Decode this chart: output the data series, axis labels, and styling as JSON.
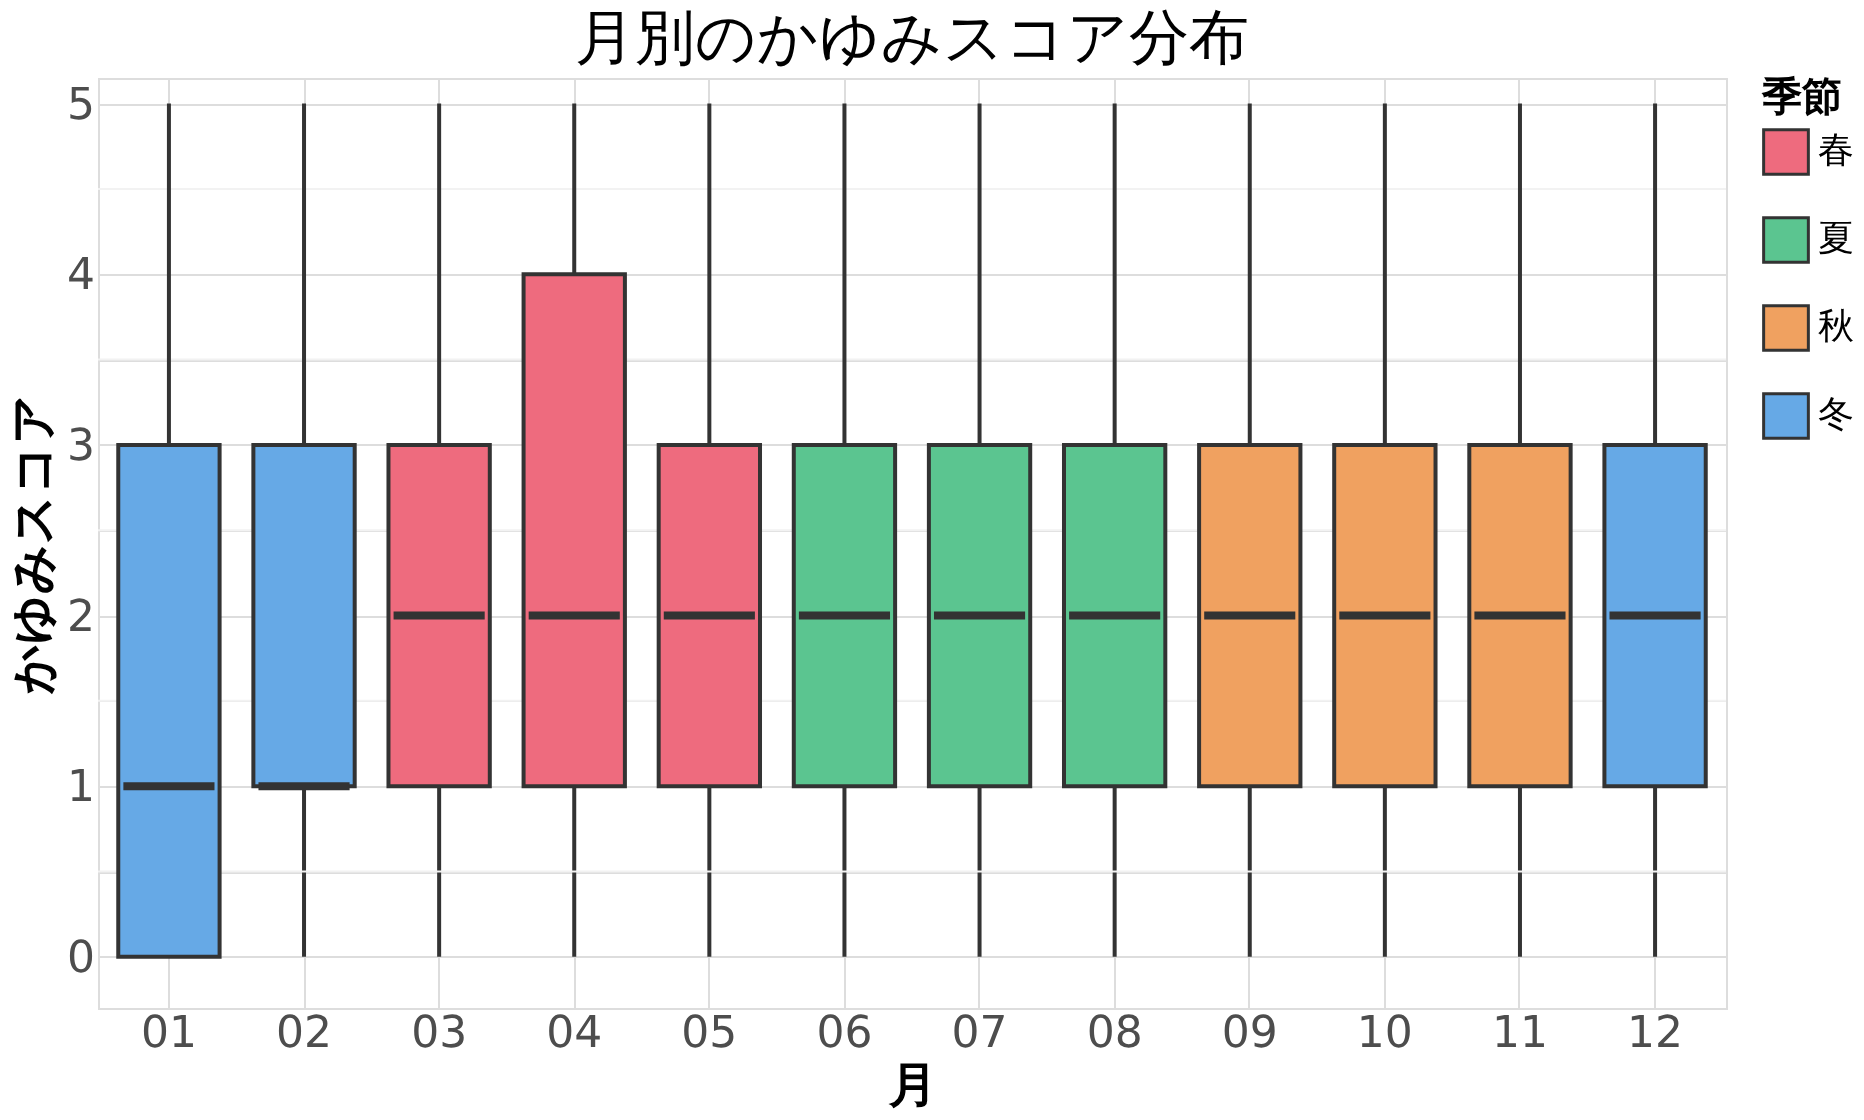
{
  "chart_data": {
    "type": "box",
    "title": "月別のかゆみスコア分布",
    "xlabel": "月",
    "ylabel": "かゆみスコア",
    "legend_title": "季節",
    "categories": [
      "01",
      "02",
      "03",
      "04",
      "05",
      "06",
      "07",
      "08",
      "09",
      "10",
      "11",
      "12"
    ],
    "series": [
      {
        "name": "春",
        "color": "#ee6b7e",
        "boxes": [
          null,
          null,
          {
            "low": 0,
            "q1": 1,
            "median": 2,
            "q3": 3,
            "high": 5
          },
          {
            "low": 0,
            "q1": 1,
            "median": 2,
            "q3": 4,
            "high": 5
          },
          {
            "low": 0,
            "q1": 1,
            "median": 2,
            "q3": 3,
            "high": 5
          },
          null,
          null,
          null,
          null,
          null,
          null,
          null
        ]
      },
      {
        "name": "夏",
        "color": "#5bc590",
        "boxes": [
          null,
          null,
          null,
          null,
          null,
          {
            "low": 0,
            "q1": 1,
            "median": 2,
            "q3": 3,
            "high": 5
          },
          {
            "low": 0,
            "q1": 1,
            "median": 2,
            "q3": 3,
            "high": 5
          },
          {
            "low": 0,
            "q1": 1,
            "median": 2,
            "q3": 3,
            "high": 5
          },
          null,
          null,
          null,
          null
        ]
      },
      {
        "name": "秋",
        "color": "#f0a160",
        "boxes": [
          null,
          null,
          null,
          null,
          null,
          null,
          null,
          null,
          {
            "low": 0,
            "q1": 1,
            "median": 2,
            "q3": 3,
            "high": 5
          },
          {
            "low": 0,
            "q1": 1,
            "median": 2,
            "q3": 3,
            "high": 5
          },
          {
            "low": 0,
            "q1": 1,
            "median": 2,
            "q3": 3,
            "high": 5
          },
          null
        ]
      },
      {
        "name": "冬",
        "color": "#66a9e6",
        "boxes": [
          {
            "low": 0,
            "q1": 0,
            "median": 1,
            "q3": 3,
            "high": 5
          },
          {
            "low": 0,
            "q1": 1,
            "median": 1,
            "q3": 3,
            "high": 5
          },
          null,
          null,
          null,
          null,
          null,
          null,
          null,
          null,
          null,
          {
            "low": 0,
            "q1": 1,
            "median": 2,
            "q3": 3,
            "high": 5
          }
        ]
      }
    ],
    "ylim": [
      -0.3,
      5.15
    ],
    "yticks": [
      0,
      {
        "value": 0.5,
        "label": null
      },
      1,
      {
        "value": 1.5,
        "label": null
      },
      2,
      {
        "value": 2.5,
        "label": null
      },
      3,
      {
        "value": 3.5,
        "label": null
      },
      4,
      {
        "value": 4.5,
        "label": null
      },
      5
    ],
    "grid": true,
    "legend": "right"
  }
}
